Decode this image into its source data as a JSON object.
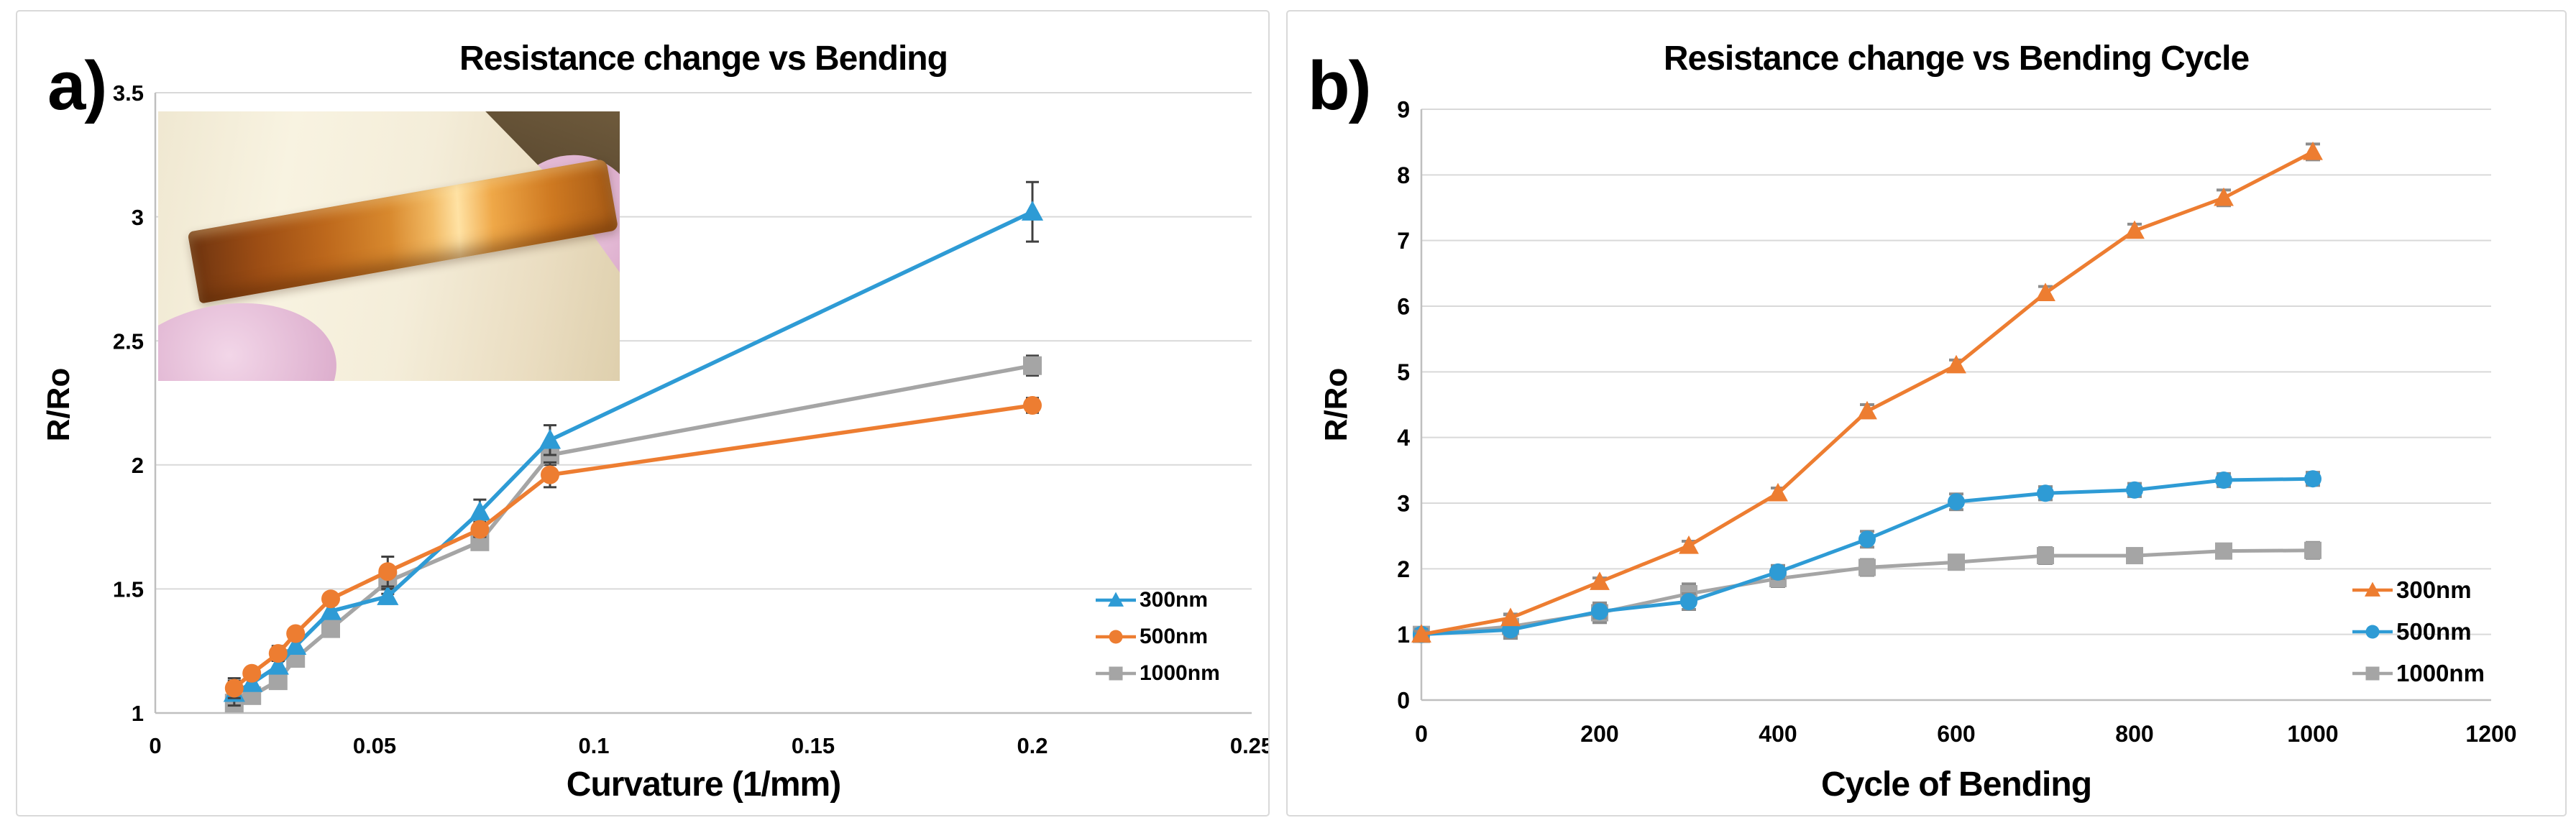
{
  "figure": {
    "description": "Two-panel scientific figure of copper thin film bending tests",
    "colors": {
      "blue": "#2E9BD5",
      "orange": "#ED7D31",
      "gray": "#A5A5A5",
      "gridline": "#D9D9D9",
      "axis_line": "#BFBFBF",
      "error_bar_a": "#404040",
      "error_bar_b": "#8C8C8C",
      "panel_border": "#D9D9D9",
      "text": "#000000"
    }
  },
  "chart_data": [
    {
      "id": "a",
      "type": "line",
      "panel_label": "a)",
      "title": "Resistance change vs Bending",
      "xlabel": "Curvature (1/mm)",
      "ylabel": "R/Ro",
      "xlim": [
        0,
        0.25
      ],
      "ylim": [
        1,
        3.5
      ],
      "xticks": [
        0,
        0.05,
        0.1,
        0.15,
        0.2,
        0.25
      ],
      "xtick_labels": [
        "0",
        "0.05",
        "0.1",
        "0.15",
        "0.2",
        "0.25"
      ],
      "yticks": [
        1,
        1.5,
        2,
        2.5,
        3,
        3.5
      ],
      "ytick_labels": [
        "1",
        "1.5",
        "2",
        "2.5",
        "3",
        "3.5"
      ],
      "grid": "horizontal",
      "legend_position": "inside-right",
      "x": [
        0.018,
        0.022,
        0.028,
        0.032,
        0.04,
        0.053,
        0.074,
        0.09,
        0.2
      ],
      "series": [
        {
          "name": "300nm",
          "color": "#2E9BD5",
          "marker": "triangle",
          "values": [
            1.08,
            1.12,
            1.19,
            1.27,
            1.41,
            1.47,
            1.81,
            2.1,
            3.02
          ],
          "errors": [
            0.05,
            0.02,
            0.02,
            0.03,
            0.03,
            0.03,
            0.05,
            0.06,
            0.12
          ]
        },
        {
          "name": "500nm",
          "color": "#ED7D31",
          "marker": "circle",
          "values": [
            1.1,
            1.16,
            1.24,
            1.32,
            1.46,
            1.57,
            1.74,
            1.96,
            2.24
          ],
          "errors": [
            0.04,
            0.02,
            0.03,
            0.02,
            0.02,
            0.06,
            0.03,
            0.05,
            0.03
          ]
        },
        {
          "name": "1000nm",
          "color": "#A5A5A5",
          "marker": "square",
          "values": [
            1.04,
            1.07,
            1.13,
            1.22,
            1.34,
            1.53,
            1.69,
            2.04,
            2.4
          ],
          "errors": [
            0.03,
            0.02,
            0.02,
            0.02,
            0.03,
            0.05,
            0.03,
            0.04,
            0.04
          ]
        }
      ],
      "inset_photo": {
        "description": "Copper thin film strip wrapped around a curved ivory cylinder held by pink gloved fingers, dark background in upper right corner"
      }
    },
    {
      "id": "b",
      "type": "line",
      "panel_label": "b)",
      "title": "Resistance change vs Bending Cycle",
      "xlabel": "Cycle of Bending",
      "ylabel": "R/Ro",
      "xlim": [
        0,
        1200
      ],
      "ylim": [
        0,
        9
      ],
      "xticks": [
        0,
        200,
        400,
        600,
        800,
        1000,
        1200
      ],
      "xtick_labels": [
        "0",
        "200",
        "400",
        "600",
        "800",
        "1000",
        "1200"
      ],
      "yticks": [
        0,
        1,
        2,
        3,
        4,
        5,
        6,
        7,
        8,
        9
      ],
      "ytick_labels": [
        "0",
        "1",
        "2",
        "3",
        "4",
        "5",
        "6",
        "7",
        "8",
        "9"
      ],
      "grid": "horizontal",
      "legend_position": "inside-right",
      "x": [
        0,
        100,
        200,
        300,
        400,
        500,
        600,
        700,
        800,
        900,
        1000
      ],
      "series": [
        {
          "name": "300nm",
          "color": "#ED7D31",
          "marker": "triangle",
          "values": [
            1.0,
            1.25,
            1.8,
            2.35,
            3.15,
            4.4,
            5.1,
            6.2,
            7.15,
            7.65,
            8.35
          ],
          "errors": [
            0.05,
            0.06,
            0.06,
            0.07,
            0.08,
            0.1,
            0.08,
            0.1,
            0.1,
            0.12,
            0.12
          ]
        },
        {
          "name": "500nm",
          "color": "#2E9BD5",
          "marker": "circle",
          "values": [
            1.0,
            1.07,
            1.35,
            1.5,
            1.95,
            2.45,
            3.02,
            3.15,
            3.2,
            3.35,
            3.37
          ],
          "errors": [
            0.08,
            0.1,
            0.1,
            0.12,
            0.1,
            0.12,
            0.12,
            0.1,
            0.1,
            0.1,
            0.1
          ]
        },
        {
          "name": "1000nm",
          "color": "#A5A5A5",
          "marker": "square",
          "values": [
            1.0,
            1.12,
            1.33,
            1.62,
            1.85,
            2.02,
            2.1,
            2.2,
            2.2,
            2.27,
            2.28
          ],
          "errors": [
            0.1,
            0.18,
            0.15,
            0.15,
            0.12,
            0.12,
            0.1,
            0.12,
            0.1,
            0.1,
            0.12
          ]
        }
      ]
    }
  ]
}
